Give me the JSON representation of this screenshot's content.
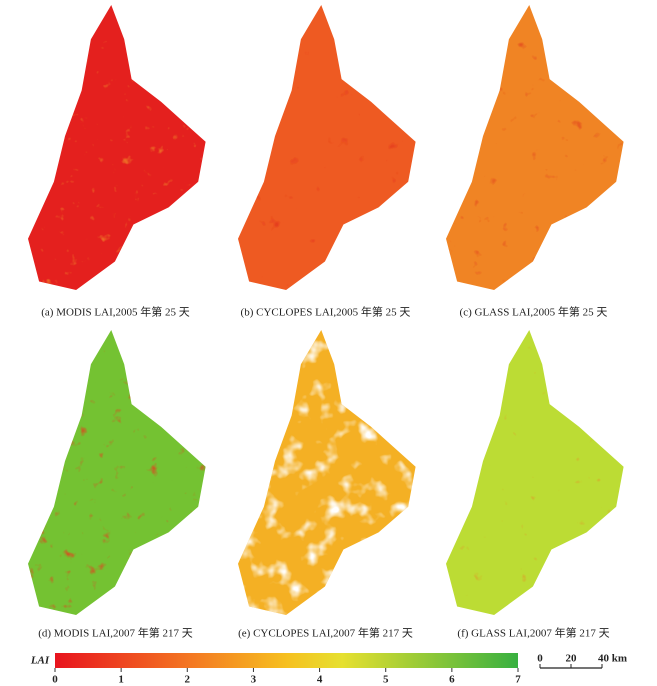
{
  "panels": [
    {
      "caption": "(a) MODIS LAI,2005 年第 25 天"
    },
    {
      "caption": "(b) CYCLOPES LAI,2005 年第 25 天"
    },
    {
      "caption": "(c) GLASS LAI,2005 年第 25 天"
    },
    {
      "caption": "(d) MODIS LAI,2007 年第 217 天"
    },
    {
      "caption": "(e) CYCLOPES LAI,2007 年第 217 天"
    },
    {
      "caption": "(f) GLASS LAI,2007 年第 217 天"
    }
  ],
  "colorbar": {
    "label": "LAI",
    "lim": [
      0,
      7
    ],
    "ticks": [
      0,
      1,
      2,
      3,
      4,
      5,
      6,
      7
    ]
  },
  "scale_bar": {
    "lim": [
      0,
      40
    ],
    "ticks": [
      0,
      20,
      {
        "value": 40,
        "label": "40 km"
      }
    ]
  }
}
